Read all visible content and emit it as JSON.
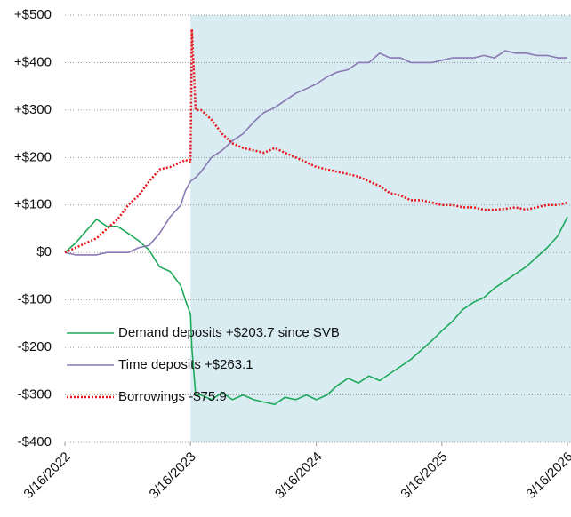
{
  "chart_data": {
    "type": "line",
    "x": [
      "2022-03-16",
      "2022-04-16",
      "2022-05-16",
      "2022-06-16",
      "2022-07-16",
      "2022-08-16",
      "2022-09-16",
      "2022-10-16",
      "2022-11-16",
      "2022-12-16",
      "2023-01-16",
      "2023-02-16",
      "2023-03-01",
      "2023-03-16",
      "2023-03-20",
      "2023-03-31",
      "2023-04-16",
      "2023-05-16",
      "2023-06-16",
      "2023-07-16",
      "2023-08-16",
      "2023-09-16",
      "2023-10-16",
      "2023-11-16",
      "2023-12-16",
      "2024-01-16",
      "2024-02-16",
      "2024-03-16",
      "2024-04-16",
      "2024-05-16",
      "2024-06-16",
      "2024-07-16",
      "2024-08-16",
      "2024-09-16",
      "2024-10-16",
      "2024-11-16",
      "2024-12-16",
      "2025-01-16",
      "2025-02-16",
      "2025-03-16",
      "2025-04-16",
      "2025-05-16",
      "2025-06-16",
      "2025-07-16",
      "2025-08-16",
      "2025-09-16",
      "2025-10-16",
      "2025-11-16",
      "2025-12-16",
      "2026-01-16",
      "2026-02-16",
      "2026-03-16"
    ],
    "series": [
      {
        "name": "Demand deposits +$203.7 since SVB",
        "color": "#1faa5a",
        "line_style": "solid",
        "values": [
          0,
          20,
          45,
          70,
          55,
          55,
          40,
          25,
          5,
          -30,
          -40,
          -70,
          -100,
          -130,
          -200,
          -300,
          -300,
          -310,
          -295,
          -310,
          -300,
          -310,
          -315,
          -320,
          -305,
          -310,
          -300,
          -310,
          -300,
          -280,
          -265,
          -275,
          -260,
          -270,
          -255,
          -240,
          -225,
          -205,
          -185,
          -165,
          -145,
          -120,
          -105,
          -95,
          -75,
          -60,
          -45,
          -30,
          -10,
          10,
          35,
          75
        ]
      },
      {
        "name": "Time deposits +$263.1",
        "color": "#8a78b4",
        "line_style": "solid",
        "values": [
          0,
          -5,
          -5,
          -5,
          0,
          0,
          0,
          10,
          15,
          40,
          75,
          100,
          130,
          150,
          152,
          158,
          170,
          200,
          215,
          235,
          250,
          275,
          295,
          305,
          320,
          335,
          345,
          355,
          370,
          380,
          385,
          400,
          400,
          420,
          410,
          410,
          400,
          400,
          400,
          405,
          410,
          410,
          410,
          415,
          410,
          425,
          420,
          420,
          415,
          415,
          410,
          410
        ]
      },
      {
        "name": "Borrowings -$75.9",
        "color": "#e8161b",
        "line_style": "dotted",
        "values": [
          0,
          10,
          20,
          30,
          50,
          70,
          100,
          120,
          150,
          175,
          180,
          190,
          195,
          190,
          470,
          300,
          300,
          280,
          250,
          230,
          220,
          215,
          210,
          220,
          210,
          200,
          190,
          180,
          175,
          170,
          165,
          160,
          150,
          140,
          125,
          120,
          110,
          110,
          105,
          100,
          100,
          95,
          95,
          90,
          90,
          92,
          95,
          90,
          95,
          100,
          100,
          105
        ]
      }
    ],
    "xlim": [
      "2022-03-16",
      "2026-03-16"
    ],
    "xticks": [
      {
        "value": "2022-03-16",
        "label": "3/16/2022"
      },
      {
        "value": "2023-03-16",
        "label": "3/16/2023"
      },
      {
        "value": "2024-03-16",
        "label": "3/16/2024"
      },
      {
        "value": "2025-03-16",
        "label": "3/16/2025"
      },
      {
        "value": "2026-03-16",
        "label": "3/16/2026"
      }
    ],
    "ylim": [
      -400,
      500
    ],
    "yticks": [
      {
        "value": -400,
        "label": "-$400"
      },
      {
        "value": -300,
        "label": "-$300"
      },
      {
        "value": -200,
        "label": "-$200"
      },
      {
        "value": -100,
        "label": "-$100"
      },
      {
        "value": 0,
        "label": "$0"
      },
      {
        "value": 100,
        "label": "+$100"
      },
      {
        "value": 200,
        "label": "+$200"
      },
      {
        "value": 300,
        "label": "+$300"
      },
      {
        "value": 400,
        "label": "+$400"
      },
      {
        "value": 500,
        "label": "+$500"
      }
    ],
    "grid": true,
    "shaded_region": {
      "start": "2023-03-16",
      "end": "2026-03-16",
      "color": "#d8ecf2"
    },
    "legend": "lower-left"
  }
}
